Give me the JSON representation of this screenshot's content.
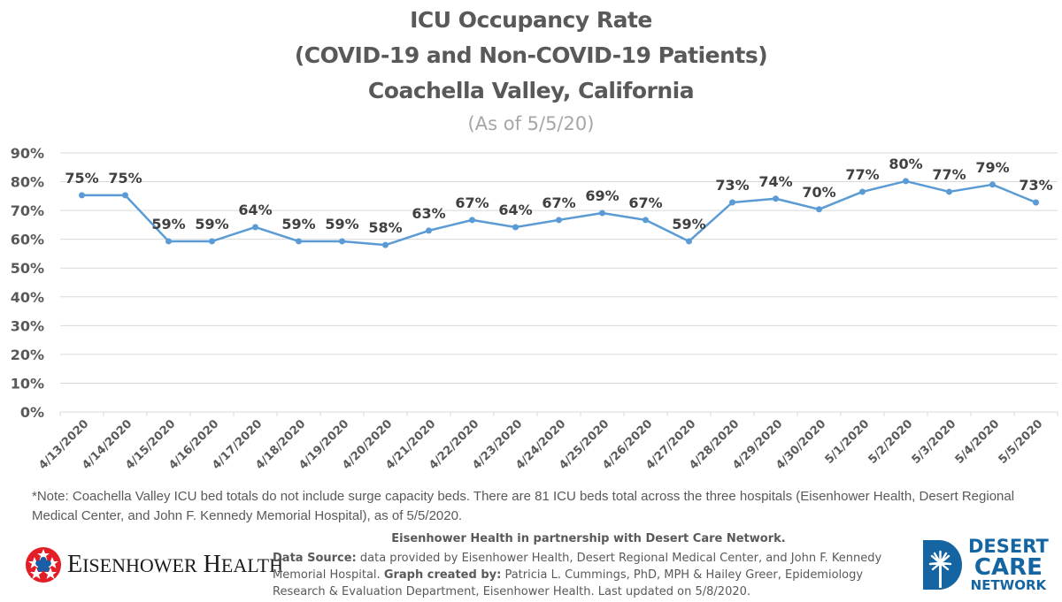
{
  "header": {
    "title_line1": "ICU Occupancy Rate",
    "title_line2": "(COVID-19 and Non-COVID-19 Patients)",
    "title_line3": "Coachella Valley, California",
    "subtitle": "(As of 5/5/20)"
  },
  "chart_data": {
    "type": "line",
    "title": "ICU Occupancy Rate (COVID-19 and Non-COVID-19 Patients) Coachella Valley, California",
    "subtitle": "(As of 5/5/20)",
    "xlabel": "",
    "ylabel": "",
    "ylim": [
      0,
      90
    ],
    "y_ticks": [
      0,
      10,
      20,
      30,
      40,
      50,
      60,
      70,
      80,
      90
    ],
    "y_tick_labels": [
      "0%",
      "10%",
      "20%",
      "30%",
      "40%",
      "50%",
      "60%",
      "70%",
      "80%",
      "90%"
    ],
    "grid": true,
    "legend": "none",
    "categories": [
      "4/13/2020",
      "4/14/2020",
      "4/15/2020",
      "4/16/2020",
      "4/17/2020",
      "4/18/2020",
      "4/19/2020",
      "4/20/2020",
      "4/21/2020",
      "4/22/2020",
      "4/23/2020",
      "4/24/2020",
      "4/25/2020",
      "4/26/2020",
      "4/27/2020",
      "4/28/2020",
      "4/29/2020",
      "4/30/2020",
      "5/1/2020",
      "5/2/2020",
      "5/3/2020",
      "5/4/2020",
      "5/5/2020"
    ],
    "series": [
      {
        "name": "ICU Occupancy Rate",
        "color": "#5b9bd5",
        "values": [
          75.3,
          75.3,
          59.3,
          59.3,
          64.2,
          59.3,
          59.3,
          58.0,
          63.0,
          66.7,
          64.2,
          66.7,
          69.1,
          66.7,
          59.3,
          72.8,
          74.1,
          70.4,
          76.5,
          80.2,
          76.5,
          79.0,
          72.8
        ],
        "data_labels": [
          "75%",
          "75%",
          "59%",
          "59%",
          "64%",
          "59%",
          "59%",
          "58%",
          "63%",
          "67%",
          "64%",
          "67%",
          "69%",
          "67%",
          "59%",
          "73%",
          "74%",
          "70%",
          "77%",
          "80%",
          "77%",
          "79%",
          "73%"
        ]
      }
    ]
  },
  "footer": {
    "note": "*Note: Coachella Valley ICU bed totals do not include surge capacity beds. There are 81 ICU beds total across the three hospitals (Eisenhower Health, Desert Regional Medical Center, and John F. Kennedy Memorial Hospital), as of 5/5/2020.",
    "partnership": "Eisenhower Health in partnership with Desert Care Network.",
    "data_source_label": "Data Source:",
    "data_source_text": " data provided by Eisenhower Health, Desert Regional Medical Center, and John F. Kennedy Memorial Hospital. ",
    "graph_created_label": "Graph created by:",
    "graph_created_text": " Patricia L. Cummings, PhD, MPH & Hailey Greer, Epidemiology Research & Evaluation Department, Eisenhower Health. Last updated on 5/8/2020."
  },
  "logos": {
    "eisenhower": {
      "first_cap": "E",
      "first_rest": "ISENHOWER",
      "second_cap": "H",
      "second_rest": "EALTH",
      "icon": "eisenhower-star-emblem",
      "colors": {
        "red": "#e31e26",
        "blue": "#1a5ea8"
      }
    },
    "desert_care": {
      "line1": "DESERT",
      "line2": "CARE",
      "line3": "NETWORK",
      "icon": "palm-tree-d-emblem",
      "color": "#1565a3"
    }
  }
}
